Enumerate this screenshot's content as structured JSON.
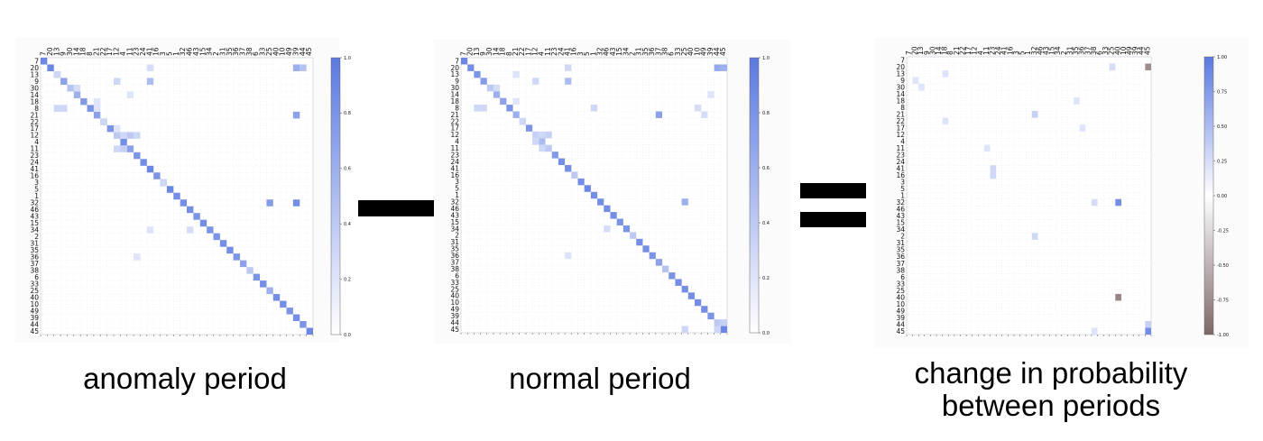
{
  "captions": {
    "anomaly": "anomaly period",
    "normal": "normal period",
    "change_line1": "change in probability",
    "change_line2": "between periods"
  },
  "colors": {
    "positive": "#5b79e0",
    "negative": "#7f6767",
    "zero": "#ffffff",
    "operator": "#000000"
  },
  "chart_data": [
    {
      "name": "anomaly",
      "type": "heatmap",
      "labels": [
        "7",
        "20",
        "13",
        "9",
        "30",
        "14",
        "18",
        "8",
        "21",
        "22",
        "17",
        "12",
        "4",
        "11",
        "23",
        "24",
        "41",
        "16",
        "3",
        "5",
        "1",
        "32",
        "46",
        "43",
        "15",
        "34",
        "2",
        "31",
        "35",
        "36",
        "37",
        "38",
        "6",
        "33",
        "25",
        "40",
        "10",
        "49",
        "39",
        "44",
        "45"
      ],
      "zlim": [
        0,
        1
      ],
      "colorbar_ticks": [
        "0.0",
        "0.2",
        "0.4",
        "0.6",
        "0.8",
        "1.0"
      ],
      "diagonal": [
        0.9,
        0.9,
        0.8,
        0.7,
        0.45,
        0.6,
        0.75,
        0.8,
        0.7,
        0.65,
        0.8,
        0.4,
        0.85,
        0.7,
        0.8,
        0.85,
        0.9,
        0.8,
        0.85,
        0.9,
        0.85,
        0.85,
        0.85,
        0.8,
        0.85,
        0.8,
        0.8,
        0.85,
        0.85,
        0.8,
        0.7,
        0.4,
        0.8,
        0.85,
        0.6,
        0.85,
        0.85,
        0.8,
        0.85,
        0.8,
        0.9
      ],
      "offdiagonal": [
        [
          1,
          38,
          0.6
        ],
        [
          1,
          16,
          0.25
        ],
        [
          1,
          39,
          0.45
        ],
        [
          3,
          16,
          0.5
        ],
        [
          3,
          11,
          0.3
        ],
        [
          8,
          38,
          0.7
        ],
        [
          7,
          2,
          0.3
        ],
        [
          7,
          3,
          0.3
        ],
        [
          11,
          12,
          0.3
        ],
        [
          11,
          13,
          0.4
        ],
        [
          11,
          14,
          0.3
        ],
        [
          13,
          11,
          0.3
        ],
        [
          13,
          12,
          0.35
        ],
        [
          21,
          34,
          0.75
        ],
        [
          21,
          38,
          0.85
        ],
        [
          18,
          18,
          0.3
        ],
        [
          25,
          22,
          0.25
        ],
        [
          29,
          14,
          0.2
        ],
        [
          25,
          16,
          0.2
        ],
        [
          5,
          13,
          0.2
        ],
        [
          4,
          5,
          0.25
        ],
        [
          2,
          2,
          0.3
        ],
        [
          9,
          9,
          0.3
        ],
        [
          6,
          8,
          0.2
        ],
        [
          7,
          8,
          0.2
        ],
        [
          10,
          11,
          0.2
        ]
      ]
    },
    {
      "name": "normal",
      "type": "heatmap",
      "labels": [
        "7",
        "20",
        "13",
        "9",
        "30",
        "14",
        "18",
        "8",
        "21",
        "22",
        "17",
        "12",
        "4",
        "11",
        "23",
        "24",
        "41",
        "16",
        "3",
        "5",
        "1",
        "32",
        "46",
        "43",
        "15",
        "34",
        "2",
        "31",
        "35",
        "36",
        "37",
        "38",
        "6",
        "33",
        "25",
        "40",
        "10",
        "49",
        "39",
        "44",
        "45"
      ],
      "zlim": [
        0,
        1
      ],
      "colorbar_ticks": [
        "0.0",
        "0.2",
        "0.4",
        "0.6",
        "0.8",
        "1.0"
      ],
      "diagonal": [
        0.9,
        0.85,
        0.8,
        0.75,
        0.4,
        0.6,
        0.7,
        0.8,
        0.6,
        0.55,
        0.8,
        0.35,
        0.5,
        0.4,
        0.75,
        0.85,
        0.85,
        0.4,
        0.85,
        0.9,
        0.85,
        0.85,
        0.85,
        0.85,
        0.8,
        0.8,
        0.4,
        0.85,
        0.85,
        0.8,
        0.7,
        0.45,
        0.8,
        0.85,
        0.85,
        0.85,
        0.85,
        0.85,
        0.8,
        0.4,
        0.9
      ],
      "offdiagonal": [
        [
          1,
          39,
          0.65
        ],
        [
          1,
          40,
          0.6
        ],
        [
          1,
          16,
          0.3
        ],
        [
          3,
          16,
          0.5
        ],
        [
          3,
          11,
          0.3
        ],
        [
          8,
          30,
          0.7
        ],
        [
          7,
          2,
          0.3
        ],
        [
          7,
          3,
          0.3
        ],
        [
          11,
          12,
          0.3
        ],
        [
          11,
          13,
          0.35
        ],
        [
          12,
          11,
          0.3
        ],
        [
          13,
          12,
          0.3
        ],
        [
          21,
          34,
          0.6
        ],
        [
          39,
          40,
          0.35
        ],
        [
          40,
          39,
          0.3
        ],
        [
          40,
          34,
          0.3
        ],
        [
          4,
          5,
          0.25
        ],
        [
          9,
          9,
          0.3
        ],
        [
          25,
          22,
          0.25
        ],
        [
          29,
          16,
          0.2
        ],
        [
          2,
          8,
          0.2
        ],
        [
          7,
          20,
          0.3
        ],
        [
          7,
          36,
          0.25
        ],
        [
          8,
          37,
          0.25
        ],
        [
          5,
          38,
          0.2
        ],
        [
          6,
          8,
          0.2
        ]
      ]
    },
    {
      "name": "change",
      "type": "heatmap",
      "labels": [
        "7",
        "20",
        "13",
        "9",
        "30",
        "14",
        "18",
        "8",
        "21",
        "22",
        "17",
        "12",
        "4",
        "11",
        "23",
        "24",
        "41",
        "16",
        "3",
        "5",
        "1",
        "32",
        "46",
        "43",
        "15",
        "34",
        "2",
        "31",
        "35",
        "36",
        "37",
        "38",
        "6",
        "33",
        "25",
        "40",
        "10",
        "49",
        "39",
        "44",
        "45"
      ],
      "zlim": [
        -1,
        1
      ],
      "colorbar_ticks": [
        "-1.00",
        "-0.75",
        "-0.50",
        "-0.25",
        "0.00",
        "0.25",
        "0.50",
        "0.75",
        "1.00"
      ],
      "diagonal": [
        0,
        0,
        0,
        0,
        0,
        0,
        0,
        0,
        0,
        0,
        0,
        0,
        0,
        0,
        0,
        0,
        0,
        0,
        0,
        0,
        0,
        0,
        0,
        0,
        0,
        0,
        0,
        0,
        0,
        0,
        0,
        0,
        0,
        0,
        0,
        0,
        0,
        0,
        0,
        0,
        0.85
      ],
      "offdiagonal": [
        [
          1,
          40,
          -0.75
        ],
        [
          2,
          6,
          0.2
        ],
        [
          8,
          21,
          0.35
        ],
        [
          21,
          35,
          0.85
        ],
        [
          35,
          35,
          -0.8
        ],
        [
          39,
          40,
          0.35
        ],
        [
          26,
          21,
          0.3
        ],
        [
          17,
          14,
          0.3
        ],
        [
          16,
          14,
          0.3
        ],
        [
          1,
          34,
          0.25
        ],
        [
          21,
          31,
          0.25
        ],
        [
          40,
          31,
          0.2
        ],
        [
          3,
          1,
          0.2
        ],
        [
          4,
          2,
          0.2
        ],
        [
          9,
          6,
          0.2
        ],
        [
          6,
          28,
          0.2
        ],
        [
          10,
          29,
          0.2
        ],
        [
          13,
          13,
          0.2
        ]
      ]
    }
  ]
}
